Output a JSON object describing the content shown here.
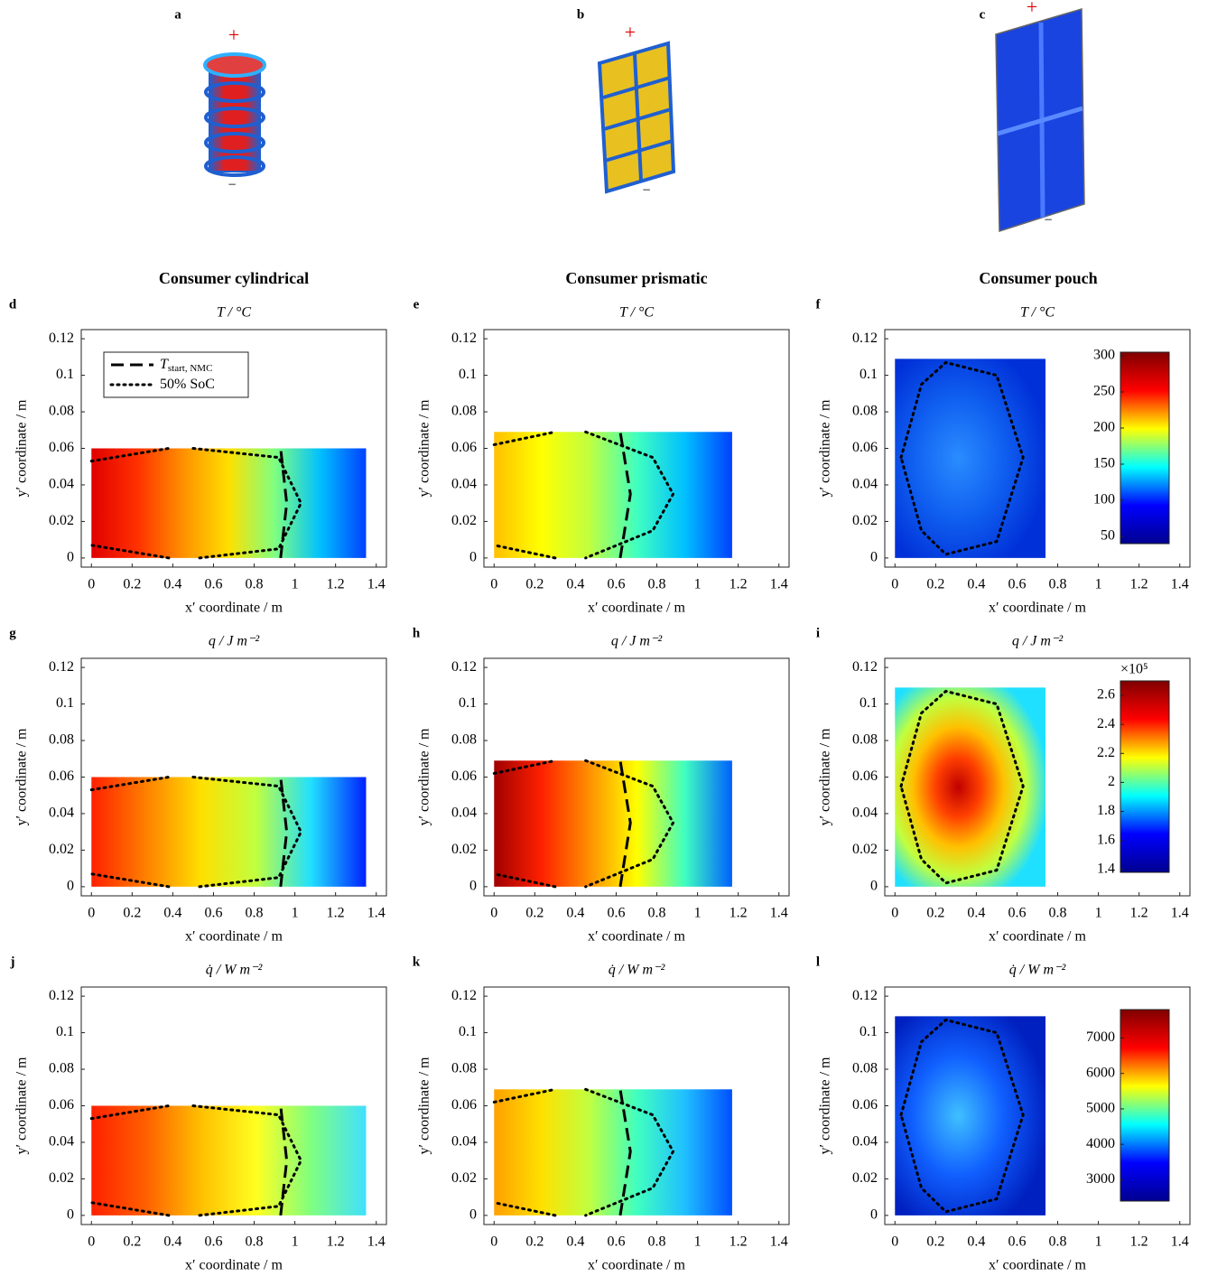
{
  "figure": {
    "column_titles": [
      "Consumer cylindrical",
      "Consumer prismatic",
      "Consumer pouch"
    ],
    "illustrations": [
      {
        "label": "a",
        "plus": "+",
        "minus": "−"
      },
      {
        "label": "b",
        "plus": "+",
        "minus": "−"
      },
      {
        "label": "c",
        "plus": "+",
        "minus": "−"
      }
    ]
  },
  "chart_data": [
    {
      "type": "contour",
      "label": "d",
      "title": "T / °C",
      "xlabel": "x′ coordinate / m",
      "ylabel": "y′ coordinate / m",
      "xlim": [
        -0.05,
        1.45
      ],
      "ylim": [
        -0.005,
        0.125
      ],
      "xticks": [
        0,
        0.2,
        0.4,
        0.6,
        0.8,
        1,
        1.2,
        1.4
      ],
      "yticks": [
        0,
        0.02,
        0.04,
        0.06,
        0.08,
        0.1,
        0.12
      ],
      "fill_x": [
        0,
        1.35
      ],
      "fill_y": [
        0,
        0.06
      ],
      "gradient": "linear",
      "colors": [
        "#e00000",
        "#ff3000",
        "#ff9000",
        "#ffe000",
        "#80ff80",
        "#00c0ff",
        "#0040ff"
      ],
      "legend": "upper left",
      "lines": [
        {
          "name": "T",
          "subscript": "start, NMC",
          "style": "dashed",
          "x": [
            0.93,
            0.96,
            0.93
          ],
          "y": [
            0,
            0.03,
            0.06
          ]
        },
        {
          "name": "50% SoC",
          "style": "dotted",
          "x": [
            0,
            0.38,
            null,
            0.5,
            0.92,
            1.03,
            0.92,
            0.53,
            null,
            0.38,
            0
          ],
          "y": [
            0.053,
            0.06,
            null,
            0.06,
            0.055,
            0.03,
            0.005,
            0,
            null,
            0,
            0.007
          ]
        }
      ]
    },
    {
      "type": "contour",
      "label": "e",
      "title": "T / °C",
      "xlabel": "x′ coordinate / m",
      "ylabel": "y′ coordinate / m",
      "xlim": [
        -0.05,
        1.45
      ],
      "ylim": [
        -0.005,
        0.125
      ],
      "xticks": [
        0,
        0.2,
        0.4,
        0.6,
        0.8,
        1,
        1.2,
        1.4
      ],
      "yticks": [
        0,
        0.02,
        0.04,
        0.06,
        0.08,
        0.1,
        0.12
      ],
      "fill_x": [
        0,
        1.17
      ],
      "fill_y": [
        0,
        0.069
      ],
      "gradient": "linear",
      "colors": [
        "#ffc000",
        "#ffff00",
        "#c0ff40",
        "#40ffc0",
        "#00c0ff",
        "#0040ff"
      ],
      "lines": [
        {
          "style": "dashed",
          "x": [
            0.62,
            0.67,
            0.62
          ],
          "y": [
            0,
            0.035,
            0.069
          ]
        },
        {
          "style": "dotted",
          "x": [
            0,
            0.3,
            null,
            0.45,
            0.78,
            0.88,
            0.78,
            0.45,
            null,
            0.3,
            0
          ],
          "y": [
            0.062,
            0.069,
            null,
            0.069,
            0.055,
            0.035,
            0.015,
            0,
            null,
            0,
            0.007
          ]
        }
      ]
    },
    {
      "type": "contour",
      "label": "f",
      "title": "T / °C",
      "xlabel": "x′ coordinate / m",
      "ylabel": "y′ coordinate / m",
      "xlim": [
        -0.05,
        1.45
      ],
      "ylim": [
        -0.005,
        0.125
      ],
      "xticks": [
        0,
        0.2,
        0.4,
        0.6,
        0.8,
        1,
        1.2,
        1.4
      ],
      "yticks": [
        0,
        0.02,
        0.04,
        0.06,
        0.08,
        0.1,
        0.12
      ],
      "fill_x": [
        0,
        0.74
      ],
      "fill_y": [
        0,
        0.109
      ],
      "gradient": "radial",
      "colors": [
        "#2a8cff",
        "#1060f0",
        "#0030d8"
      ],
      "lines": [
        {
          "style": "dotted",
          "x": [
            0.03,
            0.13,
            0.25,
            0.5,
            0.63,
            0.5,
            0.25,
            0.13,
            0.03
          ],
          "y": [
            0.055,
            0.095,
            0.107,
            0.1,
            0.055,
            0.009,
            0.002,
            0.015,
            0.055
          ]
        }
      ],
      "colorbar": {
        "clim": [
          40,
          305
        ],
        "ticks": [
          50,
          100,
          150,
          200,
          250,
          300
        ],
        "colors": [
          "#00008f",
          "#0000ff",
          "#00ffff",
          "#ffff00",
          "#ff0000",
          "#800000"
        ]
      }
    },
    {
      "type": "contour",
      "label": "g",
      "title": "q / J m⁻²",
      "xlabel": "x′ coordinate / m",
      "ylabel": "y′ coordinate / m",
      "xlim": [
        -0.05,
        1.45
      ],
      "ylim": [
        -0.005,
        0.125
      ],
      "xticks": [
        0,
        0.2,
        0.4,
        0.6,
        0.8,
        1,
        1.2,
        1.4
      ],
      "yticks": [
        0,
        0.02,
        0.04,
        0.06,
        0.08,
        0.1,
        0.12
      ],
      "fill_x": [
        0,
        1.35
      ],
      "fill_y": [
        0,
        0.06
      ],
      "gradient": "linear",
      "colors": [
        "#ff2000",
        "#ff8000",
        "#ffe000",
        "#c0ff40",
        "#20e0ff",
        "#0020ff"
      ],
      "lines": [
        {
          "style": "dashed",
          "x": [
            0.93,
            0.96,
            0.93
          ],
          "y": [
            0,
            0.03,
            0.06
          ]
        },
        {
          "style": "dotted",
          "x": [
            0,
            0.38,
            null,
            0.5,
            0.92,
            1.03,
            0.92,
            0.53,
            null,
            0.38,
            0
          ],
          "y": [
            0.053,
            0.06,
            null,
            0.06,
            0.055,
            0.03,
            0.005,
            0,
            null,
            0,
            0.007
          ]
        }
      ]
    },
    {
      "type": "contour",
      "label": "h",
      "title": "q / J m⁻²",
      "xlabel": "x′ coordinate / m",
      "ylabel": "y′ coordinate / m",
      "xlim": [
        -0.05,
        1.45
      ],
      "ylim": [
        -0.005,
        0.125
      ],
      "xticks": [
        0,
        0.2,
        0.4,
        0.6,
        0.8,
        1,
        1.2,
        1.4
      ],
      "yticks": [
        0,
        0.02,
        0.04,
        0.06,
        0.08,
        0.1,
        0.12
      ],
      "fill_x": [
        0,
        1.17
      ],
      "fill_y": [
        0,
        0.069
      ],
      "gradient": "linear",
      "colors": [
        "#a00000",
        "#ff2000",
        "#ff9000",
        "#ffff00",
        "#40ffc0",
        "#0060ff"
      ],
      "lines": [
        {
          "style": "dashed",
          "x": [
            0.62,
            0.67,
            0.62
          ],
          "y": [
            0,
            0.035,
            0.069
          ]
        },
        {
          "style": "dotted",
          "x": [
            0,
            0.3,
            null,
            0.45,
            0.78,
            0.88,
            0.78,
            0.45,
            null,
            0.3,
            0
          ],
          "y": [
            0.062,
            0.069,
            null,
            0.069,
            0.055,
            0.035,
            0.015,
            0,
            null,
            0,
            0.007
          ]
        }
      ]
    },
    {
      "type": "contour",
      "label": "i",
      "title": "q / J m⁻²",
      "xlabel": "x′ coordinate / m",
      "ylabel": "y′ coordinate / m",
      "xlim": [
        -0.05,
        1.45
      ],
      "ylim": [
        -0.005,
        0.125
      ],
      "xticks": [
        0,
        0.2,
        0.4,
        0.6,
        0.8,
        1,
        1.2,
        1.4
      ],
      "yticks": [
        0,
        0.02,
        0.04,
        0.06,
        0.08,
        0.1,
        0.12
      ],
      "fill_x": [
        0,
        0.74
      ],
      "fill_y": [
        0,
        0.109
      ],
      "gradient": "radial",
      "colors": [
        "#c00000",
        "#ff4000",
        "#ffc000",
        "#c0ff40",
        "#20e0ff"
      ],
      "lines": [
        {
          "style": "dotted",
          "x": [
            0.03,
            0.13,
            0.25,
            0.5,
            0.63,
            0.5,
            0.25,
            0.13,
            0.03
          ],
          "y": [
            0.055,
            0.095,
            0.107,
            0.1,
            0.055,
            0.009,
            0.002,
            0.015,
            0.055
          ]
        }
      ],
      "colorbar": {
        "clim": [
          138000,
          270000
        ],
        "exponent": "×10⁵",
        "ticks": [
          {
            "value": 140000,
            "label": "1.4"
          },
          {
            "value": 160000,
            "label": "1.6"
          },
          {
            "value": 180000,
            "label": "1.8"
          },
          {
            "value": 200000,
            "label": "2"
          },
          {
            "value": 220000,
            "label": "2.2"
          },
          {
            "value": 240000,
            "label": "2.4"
          },
          {
            "value": 260000,
            "label": "2.6"
          }
        ],
        "colors": [
          "#00008f",
          "#0000ff",
          "#00ffff",
          "#ffff00",
          "#ff0000",
          "#800000"
        ]
      }
    },
    {
      "type": "contour",
      "label": "j",
      "title": "q̇ / W m⁻²",
      "xlabel": "x′ coordinate / m",
      "ylabel": "y′ coordinate / m",
      "xlim": [
        -0.05,
        1.45
      ],
      "ylim": [
        -0.005,
        0.125
      ],
      "xticks": [
        0,
        0.2,
        0.4,
        0.6,
        0.8,
        1,
        1.2,
        1.4
      ],
      "yticks": [
        0,
        0.02,
        0.04,
        0.06,
        0.08,
        0.1,
        0.12
      ],
      "fill_x": [
        0,
        1.35
      ],
      "fill_y": [
        0,
        0.06
      ],
      "gradient": "linear",
      "colors": [
        "#ff2000",
        "#ff6000",
        "#ffc000",
        "#ffff20",
        "#80ff80",
        "#40e0ff"
      ],
      "lines": [
        {
          "style": "dashed",
          "x": [
            0.93,
            0.96,
            0.93
          ],
          "y": [
            0,
            0.03,
            0.06
          ]
        },
        {
          "style": "dotted",
          "x": [
            0,
            0.38,
            null,
            0.5,
            0.92,
            1.03,
            0.92,
            0.53,
            null,
            0.38,
            0
          ],
          "y": [
            0.053,
            0.06,
            null,
            0.06,
            0.055,
            0.03,
            0.005,
            0,
            null,
            0,
            0.007
          ]
        }
      ]
    },
    {
      "type": "contour",
      "label": "k",
      "title": "q̇ / W m⁻²",
      "xlabel": "x′ coordinate / m",
      "ylabel": "y′ coordinate / m",
      "xlim": [
        -0.05,
        1.45
      ],
      "ylim": [
        -0.005,
        0.125
      ],
      "xticks": [
        0,
        0.2,
        0.4,
        0.6,
        0.8,
        1,
        1.2,
        1.4
      ],
      "yticks": [
        0,
        0.02,
        0.04,
        0.06,
        0.08,
        0.1,
        0.12
      ],
      "fill_x": [
        0,
        1.17
      ],
      "fill_y": [
        0,
        0.069
      ],
      "gradient": "linear",
      "colors": [
        "#ffa000",
        "#ffe000",
        "#c0ff40",
        "#40ffc0",
        "#20c0ff",
        "#0050ff"
      ],
      "lines": [
        {
          "style": "dashed",
          "x": [
            0.62,
            0.67,
            0.62
          ],
          "y": [
            0,
            0.035,
            0.069
          ]
        },
        {
          "style": "dotted",
          "x": [
            0,
            0.3,
            null,
            0.45,
            0.78,
            0.88,
            0.78,
            0.45,
            null,
            0.3,
            0
          ],
          "y": [
            0.062,
            0.069,
            null,
            0.069,
            0.055,
            0.035,
            0.015,
            0,
            null,
            0,
            0.007
          ]
        }
      ]
    },
    {
      "type": "contour",
      "label": "l",
      "title": "q̇ / W m⁻²",
      "xlabel": "x′ coordinate / m",
      "ylabel": "y′ coordinate / m",
      "xlim": [
        -0.05,
        1.45
      ],
      "ylim": [
        -0.005,
        0.125
      ],
      "xticks": [
        0,
        0.2,
        0.4,
        0.6,
        0.8,
        1,
        1.2,
        1.4
      ],
      "yticks": [
        0,
        0.02,
        0.04,
        0.06,
        0.08,
        0.1,
        0.12
      ],
      "fill_x": [
        0,
        0.74
      ],
      "fill_y": [
        0,
        0.109
      ],
      "gradient": "radial",
      "colors": [
        "#40c0ff",
        "#1060ff",
        "#0020c0"
      ],
      "lines": [
        {
          "style": "dotted",
          "x": [
            0.03,
            0.13,
            0.25,
            0.5,
            0.63,
            0.5,
            0.25,
            0.13,
            0.03
          ],
          "y": [
            0.055,
            0.095,
            0.107,
            0.1,
            0.055,
            0.009,
            0.002,
            0.015,
            0.055
          ]
        }
      ],
      "colorbar": {
        "clim": [
          2400,
          7800
        ],
        "ticks": [
          3000,
          4000,
          5000,
          6000,
          7000
        ],
        "colors": [
          "#00008f",
          "#0000ff",
          "#00ffff",
          "#ffff00",
          "#ff0000",
          "#800000"
        ]
      }
    }
  ]
}
